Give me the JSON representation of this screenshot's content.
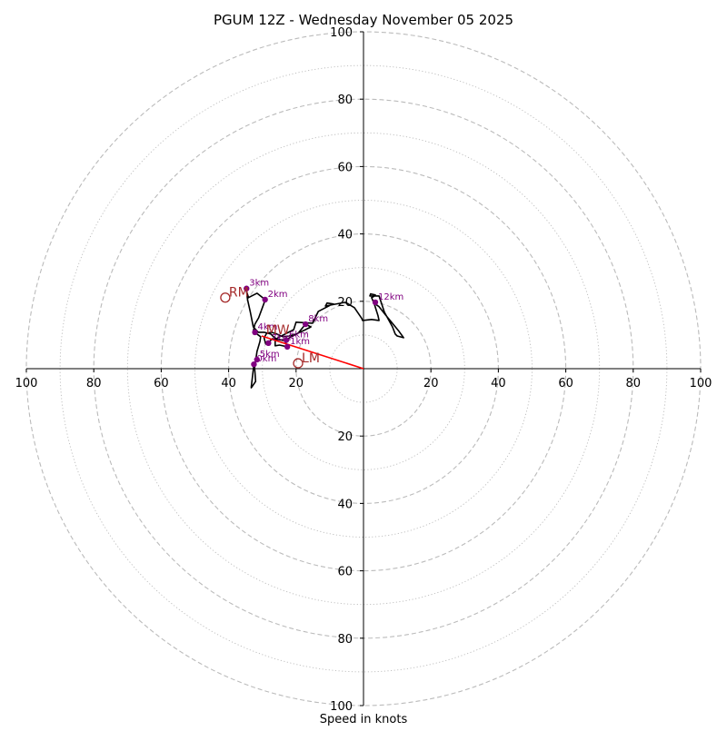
{
  "chart_data": {
    "type": "hodograph",
    "title": "PGUM 12Z - Wednesday November 05 2025",
    "xlabel": "Speed in knots",
    "rmax": 100,
    "ring_style": {
      "major_every": 20,
      "minor_every": 10,
      "major_dash": "dashed",
      "minor_dash": "dotted",
      "color": "#bbbbbb"
    },
    "x_ticks": [
      {
        "value": -100,
        "label": "100"
      },
      {
        "value": -80,
        "label": "80"
      },
      {
        "value": -60,
        "label": "60"
      },
      {
        "value": -40,
        "label": "40"
      },
      {
        "value": -20,
        "label": "20"
      },
      {
        "value": 20,
        "label": "20"
      },
      {
        "value": 40,
        "label": "40"
      },
      {
        "value": 60,
        "label": "60"
      },
      {
        "value": 80,
        "label": "80"
      },
      {
        "value": 100,
        "label": "100"
      }
    ],
    "y_ticks": [
      {
        "value": 100,
        "label": "100"
      },
      {
        "value": 80,
        "label": "80"
      },
      {
        "value": 60,
        "label": "60"
      },
      {
        "value": 40,
        "label": "40"
      },
      {
        "value": 20,
        "label": "20"
      },
      {
        "value": -20,
        "label": "20"
      },
      {
        "value": -40,
        "label": "40"
      },
      {
        "value": -60,
        "label": "60"
      },
      {
        "value": -80,
        "label": "80"
      },
      {
        "value": -100,
        "label": "100"
      }
    ],
    "trace_color": "#000000",
    "trace": [
      [
        -32.5,
        1.3
      ],
      [
        -33.3,
        -5.4
      ],
      [
        -33.3,
        -5.7
      ],
      [
        -32.0,
        -3.8
      ],
      [
        -32.3,
        0.3
      ],
      [
        -31.6,
        5.1
      ],
      [
        -30.7,
        8.1
      ],
      [
        -30.5,
        9.5
      ],
      [
        -32.7,
        11.1
      ],
      [
        -32.2,
        13.2
      ],
      [
        -31.1,
        15.1
      ],
      [
        -29.5,
        19.5
      ],
      [
        -29.2,
        20.5
      ],
      [
        -31.6,
        22.4
      ],
      [
        -34.1,
        21.1
      ],
      [
        -34.7,
        23.0
      ],
      [
        -34.4,
        20.5
      ],
      [
        -33.6,
        17.0
      ],
      [
        -32.7,
        12.4
      ],
      [
        -32.2,
        11.9
      ],
      [
        -31.2,
        10.8
      ],
      [
        -29.5,
        10.8
      ],
      [
        -27.5,
        10.3
      ],
      [
        -26.7,
        9.5
      ],
      [
        -25.4,
        8.6
      ],
      [
        -22.9,
        8.5
      ],
      [
        -21.8,
        9.3
      ],
      [
        -19.4,
        10.5
      ],
      [
        -17.2,
        13.2
      ],
      [
        -15.6,
        12.4
      ],
      [
        -17.2,
        11.6
      ],
      [
        -19.9,
        10.3
      ],
      [
        -22.1,
        9.7
      ],
      [
        -23.9,
        9.5
      ],
      [
        -25.7,
        10.3
      ],
      [
        -27.3,
        10.8
      ],
      [
        -28.7,
        10.5
      ],
      [
        -29.5,
        9.2
      ],
      [
        -29.0,
        7.3
      ],
      [
        -28.2,
        7.8
      ],
      [
        -27.0,
        8.9
      ],
      [
        -25.1,
        8.6
      ],
      [
        -23.3,
        8.3
      ],
      [
        -22.6,
        6.5
      ],
      [
        -24.9,
        7.0
      ],
      [
        -26.2,
        6.8
      ],
      [
        -26.2,
        8.1
      ],
      [
        -25.4,
        9.2
      ],
      [
        -20.7,
        11.6
      ],
      [
        -20.0,
        13.8
      ],
      [
        -15.1,
        13.5
      ],
      [
        -13.4,
        17.0
      ],
      [
        -9.2,
        19.2
      ],
      [
        -8.9,
        19.2
      ],
      [
        -10.8,
        19.5
      ],
      [
        -11.3,
        18.6
      ],
      [
        -5.4,
        19.7
      ],
      [
        -2.7,
        18.1
      ],
      [
        -0.5,
        14.9
      ],
      [
        -0.3,
        14.3
      ],
      [
        2.4,
        14.6
      ],
      [
        4.6,
        14.3
      ],
      [
        4.3,
        15.7
      ],
      [
        3.2,
        19.2
      ],
      [
        2.4,
        21.1
      ],
      [
        3.0,
        21.4
      ],
      [
        3.5,
        21.9
      ],
      [
        2.1,
        22.2
      ],
      [
        1.9,
        21.6
      ],
      [
        4.6,
        21.6
      ],
      [
        6.2,
        16.8
      ],
      [
        8.6,
        12.4
      ],
      [
        9.4,
        10.3
      ],
      [
        10.0,
        9.7
      ],
      [
        11.9,
        9.2
      ],
      [
        10.5,
        11.1
      ],
      [
        6.5,
        16.0
      ],
      [
        4.6,
        18.4
      ],
      [
        3.5,
        19.2
      ]
    ],
    "km_labels_color": "#800080",
    "km_labels": [
      {
        "label": "0km",
        "u": -32.5,
        "v": 1.3
      },
      {
        "label": "1km",
        "u": -22.6,
        "v": 6.5
      },
      {
        "label": "2km",
        "u": -29.2,
        "v": 20.5
      },
      {
        "label": "3km",
        "u": -34.7,
        "v": 23.8
      },
      {
        "label": "4km",
        "u": -32.2,
        "v": 10.8
      },
      {
        "label": "5km",
        "u": -31.6,
        "v": 2.7
      },
      {
        "label": "6km",
        "u": -22.9,
        "v": 8.5
      },
      {
        "label": "7km",
        "u": -28.2,
        "v": 7.6
      },
      {
        "label": "8km",
        "u": -17.2,
        "v": 13.2
      },
      {
        "label": "12km",
        "u": 3.5,
        "v": 19.7
      }
    ],
    "storm_motion_color": "#a52a2a",
    "storm_motion": [
      {
        "label": "RM",
        "u": -41.0,
        "v": 21.1,
        "marker": "open-circle"
      },
      {
        "label": "LM",
        "u": -19.4,
        "v": 1.6,
        "marker": "open-circle"
      },
      {
        "label": "MW",
        "u": -30.0,
        "v": 10.0,
        "marker": "none"
      }
    ],
    "shear_vector": {
      "from": [
        0,
        0
      ],
      "to": [
        -30.2,
        9.7
      ],
      "color": "#ff0000"
    }
  }
}
